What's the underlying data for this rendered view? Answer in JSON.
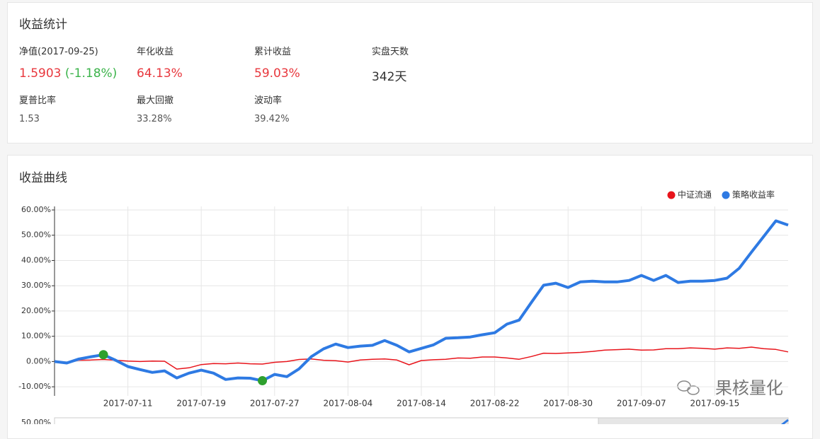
{
  "stats": {
    "title": "收益统计",
    "rows": [
      [
        {
          "label": "净值(2017-09-25)",
          "value": "1.5903",
          "change": "(-1.18%)"
        },
        {
          "label": "年化收益",
          "value": "64.13%"
        },
        {
          "label": "累计收益",
          "value": "59.03%"
        },
        {
          "label": "实盘天数",
          "value": "342天"
        }
      ],
      [
        {
          "label": "夏普比率",
          "value": "1.53"
        },
        {
          "label": "最大回撤",
          "value": "33.28%"
        },
        {
          "label": "波动率",
          "value": "39.42%"
        }
      ]
    ]
  },
  "chart_data": {
    "type": "line",
    "title": "收益曲线",
    "categories": [
      null,
      null,
      null,
      null,
      null,
      null,
      "2017-07-11",
      null,
      null,
      null,
      null,
      null,
      "2017-07-19",
      null,
      null,
      null,
      null,
      null,
      "2017-07-27",
      null,
      null,
      null,
      null,
      null,
      "2017-08-04",
      null,
      null,
      null,
      null,
      null,
      "2017-08-14",
      null,
      null,
      null,
      null,
      null,
      "2017-08-22",
      null,
      null,
      null,
      null,
      null,
      "2017-08-30",
      null,
      null,
      null,
      null,
      null,
      "2017-09-07",
      null,
      null,
      null,
      null,
      null,
      "2017-09-15",
      null,
      null,
      null,
      null,
      null,
      null
    ],
    "series": [
      {
        "name": "中证流通",
        "color": "#e8141b",
        "values": [
          0,
          -0.3,
          0.5,
          0.6,
          0.8,
          0.5,
          0.2,
          0,
          0.2,
          0.1,
          -3.0,
          -2.5,
          -1.2,
          -0.8,
          -0.9,
          -0.6,
          -0.9,
          -1.0,
          -0.3,
          0,
          0.8,
          1.0,
          0.5,
          0.3,
          -0.2,
          0.6,
          0.9,
          1.0,
          0.6,
          -1.3,
          0.4,
          0.7,
          0.9,
          1.4,
          1.3,
          1.8,
          1.8,
          1.4,
          0.9,
          2.0,
          3.3,
          3.2,
          3.4,
          3.6,
          4.0,
          4.5,
          4.7,
          4.9,
          4.5,
          4.6,
          5.1,
          5.1,
          5.4,
          5.2,
          4.9,
          5.4,
          5.2,
          5.7,
          5.1,
          4.8,
          3.8
        ]
      },
      {
        "name": "策略收益率",
        "color": "#2e7ae3",
        "values": [
          0,
          -0.6,
          1.0,
          1.9,
          2.7,
          0.5,
          -2.0,
          -3.2,
          -4.3,
          -3.7,
          -6.5,
          -4.6,
          -3.4,
          -4.6,
          -7.1,
          -6.5,
          -6.6,
          -7.6,
          -5.1,
          -6.0,
          -2.9,
          1.9,
          5.0,
          6.9,
          5.5,
          6.1,
          6.4,
          8.3,
          6.4,
          3.8,
          5.2,
          6.6,
          9.2,
          9.4,
          9.7,
          10.6,
          11.4,
          14.8,
          16.4,
          23.4,
          30.2,
          31.0,
          29.3,
          31.5,
          31.8,
          31.5,
          31.5,
          32.1,
          34.1,
          32.1,
          34.1,
          31.3,
          31.8,
          31.8,
          32.1,
          33.0,
          36.9,
          43.3,
          49.5,
          55.7,
          54.0
        ]
      }
    ],
    "ylim": [
      -13.6,
      61.4
    ],
    "yticks": [
      {
        "value": 60,
        "label": "60.00%"
      },
      {
        "value": 50,
        "label": "50.00%"
      },
      {
        "value": 40,
        "label": "40.00%"
      },
      {
        "value": 30,
        "label": "30.00%"
      },
      {
        "value": 20,
        "label": "20.00%"
      },
      {
        "value": 10,
        "label": "10.00%"
      },
      {
        "value": 0,
        "label": "0.00%"
      },
      {
        "value": -10,
        "label": "-10.00%"
      }
    ],
    "grid": true,
    "legend": "top-right",
    "drawdown_marker_color": "#2ea02e",
    "navigator_label": "50.00%",
    "watermark": "果核量化"
  }
}
